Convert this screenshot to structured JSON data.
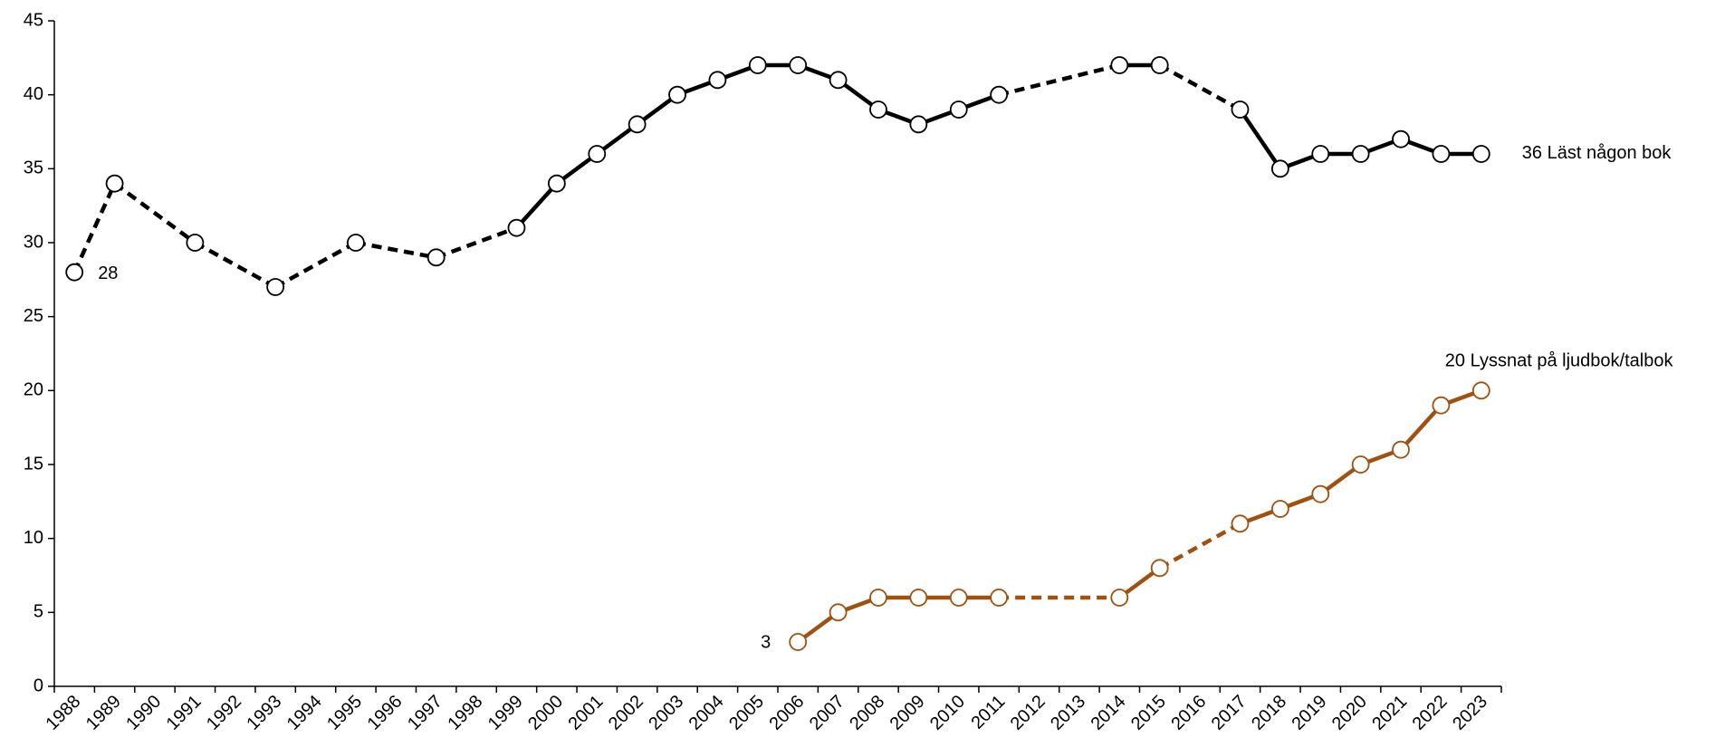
{
  "chart_data": {
    "type": "line",
    "categories": [
      "1988",
      "1989",
      "1990",
      "1991",
      "1992",
      "1993",
      "1994",
      "1995",
      "1996",
      "1997",
      "1998",
      "1999",
      "2000",
      "2001",
      "2002",
      "2003",
      "2004",
      "2005",
      "2006",
      "2007",
      "2008",
      "2009",
      "2010",
      "2011",
      "2012",
      "2013",
      "2014",
      "2015",
      "2016",
      "2017",
      "2018",
      "2019",
      "2020",
      "2021",
      "2022",
      "2023"
    ],
    "series": [
      {
        "name": "Läst någon bok",
        "color": "#000000",
        "values": [
          28,
          34,
          null,
          30,
          null,
          27,
          null,
          30,
          null,
          29,
          null,
          31,
          34,
          36,
          38,
          40,
          41,
          42,
          42,
          41,
          39,
          38,
          39,
          40,
          null,
          null,
          42,
          42,
          null,
          39,
          35,
          36,
          36,
          37,
          36,
          36
        ],
        "dashed_segments": [
          [
            0,
            1
          ]
        ]
      },
      {
        "name": "Lyssnat på ljudbok/talbok",
        "color": "#a0500f",
        "values": [
          null,
          null,
          null,
          null,
          null,
          null,
          null,
          null,
          null,
          null,
          null,
          null,
          null,
          null,
          null,
          null,
          null,
          null,
          3,
          5,
          6,
          6,
          6,
          6,
          null,
          null,
          6,
          8,
          null,
          11,
          12,
          13,
          15,
          16,
          19,
          20
        ],
        "dashed_segments": []
      }
    ],
    "ylim": [
      0,
      45
    ],
    "yticks": [
      0,
      5,
      10,
      15,
      20,
      25,
      30,
      35,
      40,
      45
    ],
    "grid": false
  }
}
